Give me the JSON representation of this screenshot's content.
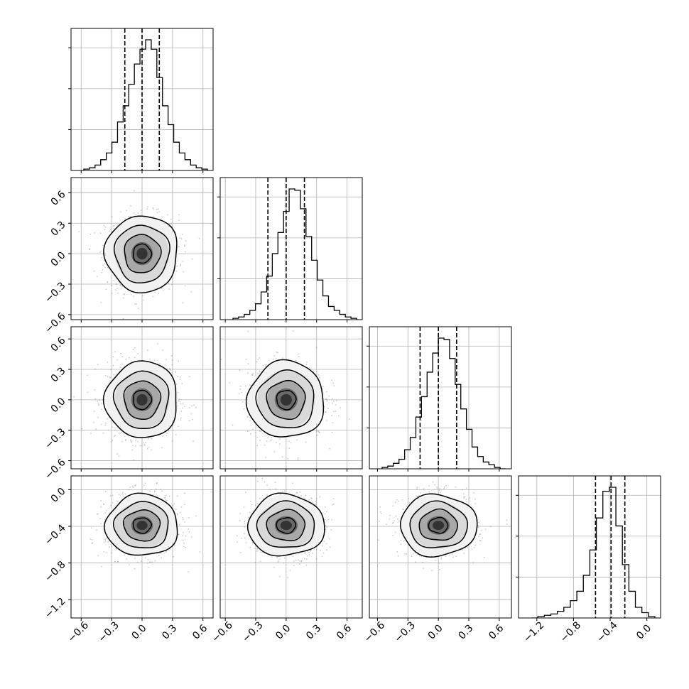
{
  "chart_data": {
    "type": "corner",
    "parameters": [
      {
        "range": [
          -0.7,
          0.7
        ],
        "ticks": [
          -0.6,
          -0.3,
          0.0,
          0.3,
          0.6
        ],
        "tick_labels": [
          "−0.6",
          "−0.3",
          "0.0",
          "0.3",
          "0.6"
        ],
        "quantiles": [
          -0.17,
          0.0,
          0.17
        ],
        "hist_counts": [
          1,
          2,
          4,
          8,
          13,
          21,
          36,
          48,
          64,
          79,
          90,
          97,
          90,
          69,
          48,
          34,
          21,
          13,
          8,
          4,
          2,
          1
        ]
      },
      {
        "range": [
          -0.65,
          0.75
        ],
        "ticks": [
          -0.6,
          -0.3,
          0.0,
          0.3,
          0.6
        ],
        "tick_labels": [
          "−0.6",
          "−0.3",
          "0.0",
          "0.3",
          "0.6"
        ],
        "quantiles": [
          -0.18,
          0.0,
          0.18
        ],
        "hist_counts": [
          1,
          2,
          4,
          7,
          12,
          21,
          33,
          50,
          66,
          82,
          99,
          98,
          84,
          63,
          45,
          30,
          18,
          10,
          7,
          4,
          2,
          1
        ]
      },
      {
        "range": [
          -0.68,
          0.72
        ],
        "ticks": [
          -0.6,
          -0.3,
          0.0,
          0.3,
          0.6
        ],
        "tick_labels": [
          "−0.6",
          "−0.3",
          "0.0",
          "0.3",
          "0.6"
        ],
        "quantiles": [
          -0.18,
          0.0,
          0.18
        ],
        "hist_counts": [
          1,
          2,
          4,
          7,
          14,
          23,
          38,
          53,
          71,
          85,
          96,
          95,
          81,
          62,
          44,
          29,
          16,
          9,
          5,
          3,
          1,
          0
        ]
      },
      {
        "range": [
          -1.4,
          0.15
        ],
        "ticks": [
          -1.2,
          -0.8,
          -0.4,
          0.0
        ],
        "tick_labels": [
          "−1.2",
          "−0.8",
          "−0.4",
          "0.0"
        ],
        "quantiles": [
          -0.56,
          -0.39,
          -0.24
        ],
        "hist_counts": [
          0,
          1,
          2,
          3,
          5,
          8,
          13,
          20,
          32,
          51,
          75,
          95,
          98,
          69,
          40,
          20,
          8,
          4,
          1
        ]
      }
    ],
    "pairs": [
      {
        "row": 1,
        "col": 0,
        "cx": 0.0,
        "cy": 0.0,
        "sx": 0.17,
        "sy": 0.18
      },
      {
        "row": 2,
        "col": 0,
        "cx": 0.0,
        "cy": 0.0,
        "sx": 0.17,
        "sy": 0.18
      },
      {
        "row": 2,
        "col": 1,
        "cx": 0.0,
        "cy": 0.0,
        "sx": 0.18,
        "sy": 0.18
      },
      {
        "row": 3,
        "col": 0,
        "cx": 0.0,
        "cy": -0.39,
        "sx": 0.17,
        "sy": 0.16
      },
      {
        "row": 3,
        "col": 1,
        "cx": 0.0,
        "cy": -0.39,
        "sx": 0.18,
        "sy": 0.16
      },
      {
        "row": 3,
        "col": 2,
        "cx": 0.0,
        "cy": -0.39,
        "sx": 0.18,
        "sy": 0.16
      }
    ],
    "contour_levels_sigma": [
      0.5,
      1.0,
      1.5,
      2.0
    ],
    "grid": true,
    "colors": {
      "hist": "#000000",
      "quantile": "#000000",
      "contour": "#000000",
      "scatter": "#888888",
      "grid": "#b0b0b0"
    }
  }
}
